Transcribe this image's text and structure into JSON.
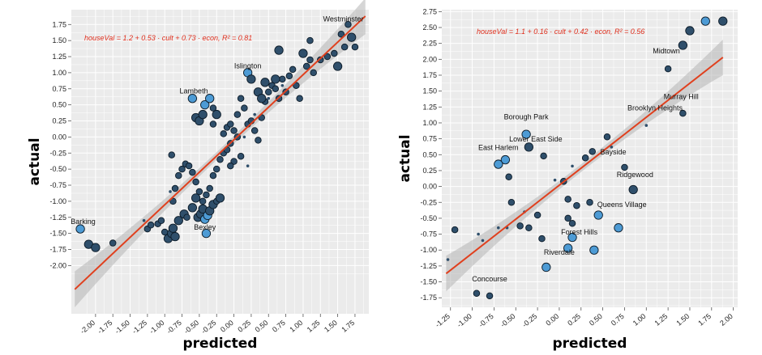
{
  "chart_data": [
    {
      "type": "scatter",
      "xlabel": "predicted",
      "ylabel": "actual",
      "annotation": "houseVal = 1.2 + 0.53 · cult + 0.73 · econ,  R² = 0.81",
      "xlim": [
        -2.35,
        1.95
      ],
      "ylim": [
        -2.75,
        1.98
      ],
      "xticks": [
        "-2.00",
        "-1.75",
        "-1.50",
        "-1.25",
        "-1.00",
        "-0.75",
        "-0.50",
        "-0.25",
        "0.00",
        "0.25",
        "0.50",
        "0.75",
        "1.00",
        "1.25",
        "1.50",
        "1.75"
      ],
      "yticks": [
        "-2.00",
        "-1.75",
        "-1.50",
        "-1.25",
        "-1.00",
        "-0.75",
        "-0.50",
        "-0.25",
        "0.00",
        "0.25",
        "0.50",
        "0.75",
        "1.00",
        "1.25",
        "1.50",
        "1.75"
      ],
      "fit": {
        "x": [
          -2.3,
          1.9
        ],
        "y": [
          -2.37,
          1.88
        ]
      },
      "grid": true,
      "labels": [
        {
          "text": "Barking",
          "x": -2.18,
          "y": -1.43
        },
        {
          "text": "Bexley",
          "x": -0.42,
          "y": -1.52
        },
        {
          "text": "Lambeth",
          "x": -0.58,
          "y": 0.6
        },
        {
          "text": "Islington",
          "x": 0.2,
          "y": 0.99
        },
        {
          "text": "Westminster",
          "x": 1.58,
          "y": 1.72
        }
      ],
      "points": [
        {
          "x": -2.22,
          "y": -1.43,
          "s": 2,
          "hl": true
        },
        {
          "x": -2.1,
          "y": -1.67,
          "s": 2
        },
        {
          "x": -2.0,
          "y": -1.72,
          "s": 2
        },
        {
          "x": -1.75,
          "y": -1.65,
          "s": 1
        },
        {
          "x": -1.3,
          "y": -1.3,
          "s": 0
        },
        {
          "x": -1.25,
          "y": -1.43,
          "s": 1
        },
        {
          "x": -1.2,
          "y": -1.37,
          "s": 1
        },
        {
          "x": -1.1,
          "y": -1.35,
          "s": 1
        },
        {
          "x": -1.05,
          "y": -1.3,
          "s": 1
        },
        {
          "x": -1.0,
          "y": -1.48,
          "s": 1
        },
        {
          "x": -0.95,
          "y": -1.58,
          "s": 2
        },
        {
          "x": -0.9,
          "y": -1.5,
          "s": 2
        },
        {
          "x": -0.88,
          "y": -1.42,
          "s": 2
        },
        {
          "x": -0.85,
          "y": -1.55,
          "s": 2
        },
        {
          "x": -0.8,
          "y": -1.3,
          "s": 2
        },
        {
          "x": -0.92,
          "y": -0.85,
          "s": 0
        },
        {
          "x": -0.88,
          "y": -1.0,
          "s": 1
        },
        {
          "x": -0.85,
          "y": -0.8,
          "s": 1
        },
        {
          "x": -0.8,
          "y": -0.6,
          "s": 1
        },
        {
          "x": -0.75,
          "y": -0.5,
          "s": 1
        },
        {
          "x": -0.7,
          "y": -0.42,
          "s": 1
        },
        {
          "x": -0.65,
          "y": -0.45,
          "s": 1
        },
        {
          "x": -0.6,
          "y": -0.55,
          "s": 1
        },
        {
          "x": -0.55,
          "y": -0.7,
          "s": 1
        },
        {
          "x": -0.5,
          "y": -0.85,
          "s": 1
        },
        {
          "x": -0.45,
          "y": -1.0,
          "s": 1
        },
        {
          "x": -0.4,
          "y": -0.9,
          "s": 1
        },
        {
          "x": -0.35,
          "y": -0.8,
          "s": 1
        },
        {
          "x": -0.3,
          "y": -0.6,
          "s": 1
        },
        {
          "x": -0.9,
          "y": -0.28,
          "s": 1
        },
        {
          "x": -0.72,
          "y": -1.2,
          "s": 2
        },
        {
          "x": -0.68,
          "y": -1.25,
          "s": 1
        },
        {
          "x": -0.6,
          "y": -1.1,
          "s": 2
        },
        {
          "x": -0.55,
          "y": -0.95,
          "s": 2
        },
        {
          "x": -0.52,
          "y": -1.25,
          "s": 2
        },
        {
          "x": -0.48,
          "y": -1.2,
          "s": 2
        },
        {
          "x": -0.45,
          "y": -1.12,
          "s": 2
        },
        {
          "x": -0.42,
          "y": -1.28,
          "s": 2,
          "hl": true
        },
        {
          "x": -0.4,
          "y": -1.5,
          "s": 2,
          "hl": true
        },
        {
          "x": -0.38,
          "y": -1.22,
          "s": 2,
          "hl": true
        },
        {
          "x": -0.35,
          "y": -1.15,
          "s": 2
        },
        {
          "x": -0.3,
          "y": -1.05,
          "s": 2
        },
        {
          "x": -0.25,
          "y": -1.0,
          "s": 1
        },
        {
          "x": -0.2,
          "y": -0.95,
          "s": 2
        },
        {
          "x": -0.25,
          "y": -0.5,
          "s": 1
        },
        {
          "x": -0.2,
          "y": -0.35,
          "s": 1
        },
        {
          "x": -0.15,
          "y": -0.25,
          "s": 1
        },
        {
          "x": -0.1,
          "y": -0.2,
          "s": 1
        },
        {
          "x": -0.05,
          "y": -0.1,
          "s": 1
        },
        {
          "x": 0.0,
          "y": -0.38,
          "s": 1
        },
        {
          "x": 0.05,
          "y": 0.0,
          "s": 1
        },
        {
          "x": 0.1,
          "y": -0.3,
          "s": 1
        },
        {
          "x": -0.15,
          "y": 0.05,
          "s": 1
        },
        {
          "x": -0.1,
          "y": 0.15,
          "s": 1
        },
        {
          "x": -0.05,
          "y": 0.2,
          "s": 1
        },
        {
          "x": 0.0,
          "y": 0.1,
          "s": 1
        },
        {
          "x": -0.3,
          "y": 0.2,
          "s": 1
        },
        {
          "x": -0.25,
          "y": 0.35,
          "s": 1
        },
        {
          "x": -0.55,
          "y": 0.3,
          "s": 2
        },
        {
          "x": -0.5,
          "y": 0.25,
          "s": 2
        },
        {
          "x": -0.45,
          "y": 0.35,
          "s": 2
        },
        {
          "x": -0.42,
          "y": 0.5,
          "s": 2,
          "hl": true
        },
        {
          "x": -0.6,
          "y": 0.6,
          "s": 2,
          "hl": true
        },
        {
          "x": -0.35,
          "y": 0.6,
          "s": 2,
          "hl": true
        },
        {
          "x": -0.3,
          "y": 0.45,
          "s": 1
        },
        {
          "x": -0.25,
          "y": 0.35,
          "s": 2
        },
        {
          "x": 0.05,
          "y": 0.35,
          "s": 1
        },
        {
          "x": 0.1,
          "y": 0.6,
          "s": 1
        },
        {
          "x": 0.15,
          "y": 0.45,
          "s": 1
        },
        {
          "x": 0.2,
          "y": 0.2,
          "s": 1
        },
        {
          "x": 0.25,
          "y": 0.25,
          "s": 1
        },
        {
          "x": 0.3,
          "y": 0.1,
          "s": 1
        },
        {
          "x": 0.35,
          "y": -0.05,
          "s": 1
        },
        {
          "x": 0.4,
          "y": 0.3,
          "s": 1
        },
        {
          "x": 0.45,
          "y": 0.55,
          "s": 1
        },
        {
          "x": 0.5,
          "y": 0.7,
          "s": 1
        },
        {
          "x": 0.55,
          "y": 0.8,
          "s": 1
        },
        {
          "x": 0.6,
          "y": 0.75,
          "s": 1
        },
        {
          "x": 0.65,
          "y": 0.6,
          "s": 1
        },
        {
          "x": 0.7,
          "y": 0.9,
          "s": 1
        },
        {
          "x": 0.75,
          "y": 0.7,
          "s": 1
        },
        {
          "x": 0.8,
          "y": 0.95,
          "s": 1
        },
        {
          "x": 0.85,
          "y": 1.05,
          "s": 1
        },
        {
          "x": 0.9,
          "y": 0.8,
          "s": 1
        },
        {
          "x": 0.95,
          "y": 0.6,
          "s": 1
        },
        {
          "x": 1.05,
          "y": 1.1,
          "s": 1
        },
        {
          "x": 1.1,
          "y": 1.2,
          "s": 1
        },
        {
          "x": 1.15,
          "y": 1.0,
          "s": 1
        },
        {
          "x": 1.0,
          "y": 1.3,
          "s": 2
        },
        {
          "x": 1.1,
          "y": 1.5,
          "s": 1
        },
        {
          "x": 1.25,
          "y": 1.2,
          "s": 1
        },
        {
          "x": 1.35,
          "y": 1.25,
          "s": 1
        },
        {
          "x": 1.45,
          "y": 1.3,
          "s": 1
        },
        {
          "x": 1.5,
          "y": 1.1,
          "s": 2
        },
        {
          "x": 1.55,
          "y": 1.6,
          "s": 1
        },
        {
          "x": 1.6,
          "y": 1.4,
          "s": 1
        },
        {
          "x": 1.65,
          "y": 1.75,
          "s": 1
        },
        {
          "x": 1.7,
          "y": 1.55,
          "s": 2
        },
        {
          "x": 1.75,
          "y": 1.4,
          "s": 1
        },
        {
          "x": 0.2,
          "y": 1.0,
          "s": 2,
          "hl": true
        },
        {
          "x": 0.25,
          "y": 0.9,
          "s": 2
        },
        {
          "x": 0.35,
          "y": 0.7,
          "s": 2
        },
        {
          "x": 0.45,
          "y": 0.85,
          "s": 2
        },
        {
          "x": 0.6,
          "y": 0.9,
          "s": 2
        },
        {
          "x": 0.65,
          "y": 1.35,
          "s": 2
        },
        {
          "x": 0.4,
          "y": 0.6,
          "s": 2
        },
        {
          "x": 0.2,
          "y": -0.45,
          "s": 0
        },
        {
          "x": -0.05,
          "y": -0.45,
          "s": 1
        },
        {
          "x": 0.15,
          "y": 0.0,
          "s": 0
        },
        {
          "x": 0.3,
          "y": 0.35,
          "s": 0
        },
        {
          "x": 0.5,
          "y": 0.6,
          "s": 0
        },
        {
          "x": 0.7,
          "y": 0.8,
          "s": 0
        }
      ]
    },
    {
      "type": "scatter",
      "xlabel": "predicted",
      "ylabel": "actual",
      "annotation": "houseVal = 1.1 + 0.16 · cult + 0.42 · econ,  R² = 0.56",
      "xlim": [
        -1.35,
        2.05
      ],
      "ylim": [
        -1.9,
        2.78
      ],
      "xticks": [
        "-1.25",
        "-1.00",
        "-0.75",
        "-0.50",
        "-0.25",
        "0.00",
        "0.25",
        "0.50",
        "0.75",
        "1.00",
        "1.25",
        "1.50",
        "1.75",
        "2.00"
      ],
      "yticks": [
        "-1.75",
        "-1.50",
        "-1.25",
        "-1.00",
        "-0.75",
        "-0.50",
        "-0.25",
        "0.00",
        "0.25",
        "0.50",
        "0.75",
        "1.00",
        "1.25",
        "1.50",
        "1.75",
        "2.00",
        "2.25",
        "2.50",
        "2.75"
      ],
      "fit": {
        "x": [
          -1.3,
          1.88
        ],
        "y": [
          -1.37,
          2.03
        ]
      },
      "grid": true,
      "labels": [
        {
          "text": "Midtown",
          "x": 1.23,
          "y": 2.02
        },
        {
          "text": "Murray Hill",
          "x": 1.4,
          "y": 1.3
        },
        {
          "text": "Brooklyn Heights",
          "x": 1.1,
          "y": 1.12
        },
        {
          "text": "Borough Park",
          "x": -0.38,
          "y": 0.98
        },
        {
          "text": "Lower East Side",
          "x": -0.27,
          "y": 0.63
        },
        {
          "text": "East Harlem",
          "x": -0.7,
          "y": 0.5
        },
        {
          "text": "Bayside",
          "x": 0.62,
          "y": 0.43
        },
        {
          "text": "Ridgewood",
          "x": 0.87,
          "y": 0.07
        },
        {
          "text": "Queens Village",
          "x": 0.72,
          "y": -0.4
        },
        {
          "text": "Forest Hills",
          "x": 0.23,
          "y": -0.83
        },
        {
          "text": "Riverdale",
          "x": 0.0,
          "y": -1.15
        },
        {
          "text": "Concourse",
          "x": -0.8,
          "y": -1.57
        }
      ],
      "points": [
        {
          "x": -1.28,
          "y": -1.15,
          "s": 0
        },
        {
          "x": -1.2,
          "y": -0.68,
          "s": 1
        },
        {
          "x": -0.93,
          "y": -0.75,
          "s": 0
        },
        {
          "x": -0.88,
          "y": -0.85,
          "s": 0
        },
        {
          "x": -0.95,
          "y": -1.68,
          "s": 1
        },
        {
          "x": -0.8,
          "y": -1.72,
          "s": 1
        },
        {
          "x": -0.7,
          "y": -0.65,
          "s": 0
        },
        {
          "x": -0.6,
          "y": -0.65,
          "s": 0
        },
        {
          "x": -0.55,
          "y": -0.25,
          "s": 1
        },
        {
          "x": -0.58,
          "y": 0.15,
          "s": 1
        },
        {
          "x": -0.62,
          "y": 0.42,
          "s": 2,
          "hl": true
        },
        {
          "x": -0.7,
          "y": 0.35,
          "s": 2,
          "hl": true
        },
        {
          "x": -0.38,
          "y": 0.82,
          "s": 2,
          "hl": true
        },
        {
          "x": -0.35,
          "y": 0.62,
          "s": 2
        },
        {
          "x": -0.18,
          "y": 0.48,
          "s": 1
        },
        {
          "x": -0.45,
          "y": -0.62,
          "s": 1
        },
        {
          "x": -0.4,
          "y": -0.4,
          "s": 0
        },
        {
          "x": -0.35,
          "y": -0.65,
          "s": 1
        },
        {
          "x": -0.25,
          "y": -0.45,
          "s": 1
        },
        {
          "x": -0.2,
          "y": -0.82,
          "s": 1
        },
        {
          "x": -0.05,
          "y": 0.1,
          "s": 0
        },
        {
          "x": 0.05,
          "y": 0.08,
          "s": 1
        },
        {
          "x": 0.1,
          "y": -0.2,
          "s": 1
        },
        {
          "x": 0.1,
          "y": -0.5,
          "s": 1
        },
        {
          "x": 0.15,
          "y": -0.8,
          "s": 2,
          "hl": true
        },
        {
          "x": 0.1,
          "y": -0.97,
          "s": 2,
          "hl": true
        },
        {
          "x": 0.15,
          "y": -0.58,
          "s": 1
        },
        {
          "x": 0.2,
          "y": -0.3,
          "s": 1
        },
        {
          "x": 0.15,
          "y": 0.32,
          "s": 0
        },
        {
          "x": 0.3,
          "y": 0.45,
          "s": 1
        },
        {
          "x": 0.35,
          "y": -0.25,
          "s": 1
        },
        {
          "x": 0.38,
          "y": 0.55,
          "s": 1
        },
        {
          "x": 0.45,
          "y": -0.45,
          "s": 2,
          "hl": true
        },
        {
          "x": 0.4,
          "y": -1.0,
          "s": 2,
          "hl": true
        },
        {
          "x": -0.15,
          "y": -1.27,
          "s": 2,
          "hl": true
        },
        {
          "x": 0.55,
          "y": 0.78,
          "s": 1
        },
        {
          "x": 0.6,
          "y": 0.62,
          "s": 0
        },
        {
          "x": 0.68,
          "y": -0.65,
          "s": 2,
          "hl": true
        },
        {
          "x": 0.75,
          "y": 0.3,
          "s": 1
        },
        {
          "x": 0.85,
          "y": -0.05,
          "s": 2
        },
        {
          "x": 1.0,
          "y": 0.96,
          "s": 0
        },
        {
          "x": 1.25,
          "y": 1.85,
          "s": 1
        },
        {
          "x": 1.42,
          "y": 1.15,
          "s": 1
        },
        {
          "x": 1.42,
          "y": 2.22,
          "s": 2
        },
        {
          "x": 1.5,
          "y": 2.45,
          "s": 2
        },
        {
          "x": 1.68,
          "y": 2.6,
          "s": 2,
          "hl": true
        },
        {
          "x": 1.88,
          "y": 2.6,
          "s": 2
        }
      ]
    }
  ]
}
